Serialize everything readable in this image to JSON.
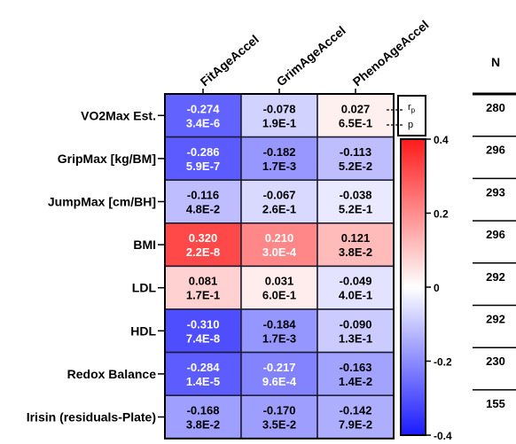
{
  "chart_data": {
    "type": "heatmap",
    "columns": [
      "FitAgeAccel",
      "GrimAgeAccel",
      "PhenoAgeAccel"
    ],
    "rows": [
      {
        "label": "VO2Max Est.",
        "n": "280",
        "r": [
          -0.274,
          -0.078,
          0.027
        ],
        "r_text": [
          "-0.274",
          "-0.078",
          "0.027"
        ],
        "p_text": [
          "3.4E-6",
          "1.9E-1",
          "6.5E-1"
        ]
      },
      {
        "label": "GripMax [kg/BM]",
        "n": "296",
        "r": [
          -0.286,
          -0.182,
          -0.113
        ],
        "r_text": [
          "-0.286",
          "-0.182",
          "-0.113"
        ],
        "p_text": [
          "5.9E-7",
          "1.7E-3",
          "5.2E-2"
        ]
      },
      {
        "label": "JumpMax [cm/BH]",
        "n": "293",
        "r": [
          -0.116,
          -0.067,
          -0.038
        ],
        "r_text": [
          "-0.116",
          "-0.067",
          "-0.038"
        ],
        "p_text": [
          "4.8E-2",
          "2.6E-1",
          "5.2E-1"
        ]
      },
      {
        "label": "BMI",
        "n": "296",
        "r": [
          0.32,
          0.21,
          0.121
        ],
        "r_text": [
          "0.320",
          "0.210",
          "0.121"
        ],
        "p_text": [
          "2.2E-8",
          "3.0E-4",
          "3.8E-2"
        ]
      },
      {
        "label": "LDL",
        "n": "292",
        "r": [
          0.081,
          0.031,
          -0.049
        ],
        "r_text": [
          "0.081",
          "0.031",
          "-0.049"
        ],
        "p_text": [
          "1.7E-1",
          "6.0E-1",
          "4.0E-1"
        ]
      },
      {
        "label": "HDL",
        "n": "292",
        "r": [
          -0.31,
          -0.184,
          -0.09
        ],
        "r_text": [
          "-0.310",
          "-0.184",
          "-0.090"
        ],
        "p_text": [
          "7.4E-8",
          "1.7E-3",
          "1.3E-1"
        ]
      },
      {
        "label": "Redox Balance",
        "n": "230",
        "r": [
          -0.284,
          -0.217,
          -0.163
        ],
        "r_text": [
          "-0.284",
          "-0.217",
          "-0.163"
        ],
        "p_text": [
          "1.4E-5",
          "9.6E-4",
          "1.4E-2"
        ]
      },
      {
        "label": "Irisin (residuals-Plate)",
        "n": "155",
        "r": [
          -0.168,
          -0.17,
          -0.142
        ],
        "r_text": [
          "-0.168",
          "-0.170",
          "-0.142"
        ],
        "p_text": [
          "3.8E-2",
          "3.5E-2",
          "7.9E-2"
        ]
      }
    ],
    "n_header": "N",
    "colorbar": {
      "min": -0.4,
      "max": 0.4,
      "ticks": [
        0.4,
        0.2,
        0,
        -0.2,
        -0.4
      ],
      "tick_labels": [
        "0.4",
        "0.2",
        "0",
        "-0.2",
        "-0.4"
      ],
      "colors": {
        "low": "#1a1aff",
        "mid": "#ffffff",
        "high": "#ff1a1a"
      }
    },
    "key": {
      "r_label": "r",
      "r_sub": "p",
      "p_label": "p"
    }
  }
}
